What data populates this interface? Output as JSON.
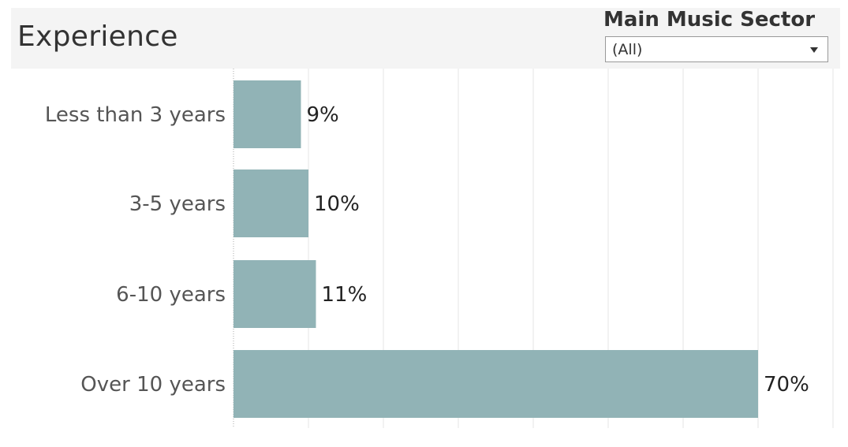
{
  "header": {
    "title": "Experience"
  },
  "filter": {
    "label": "Main Music Sector",
    "value": "(All)",
    "arrow_icon": "dropdown-arrow-icon"
  },
  "chart_data": {
    "type": "bar",
    "orientation": "horizontal",
    "categories": [
      "Less than 3 years",
      "3-5 years",
      "6-10 years",
      "Over 10 years"
    ],
    "values": [
      9,
      10,
      11,
      70
    ],
    "value_labels": [
      "9%",
      "10%",
      "11%",
      "70%"
    ],
    "xlim": [
      0,
      80
    ],
    "grid": "vertical",
    "bar_color": "#91b3b6"
  }
}
